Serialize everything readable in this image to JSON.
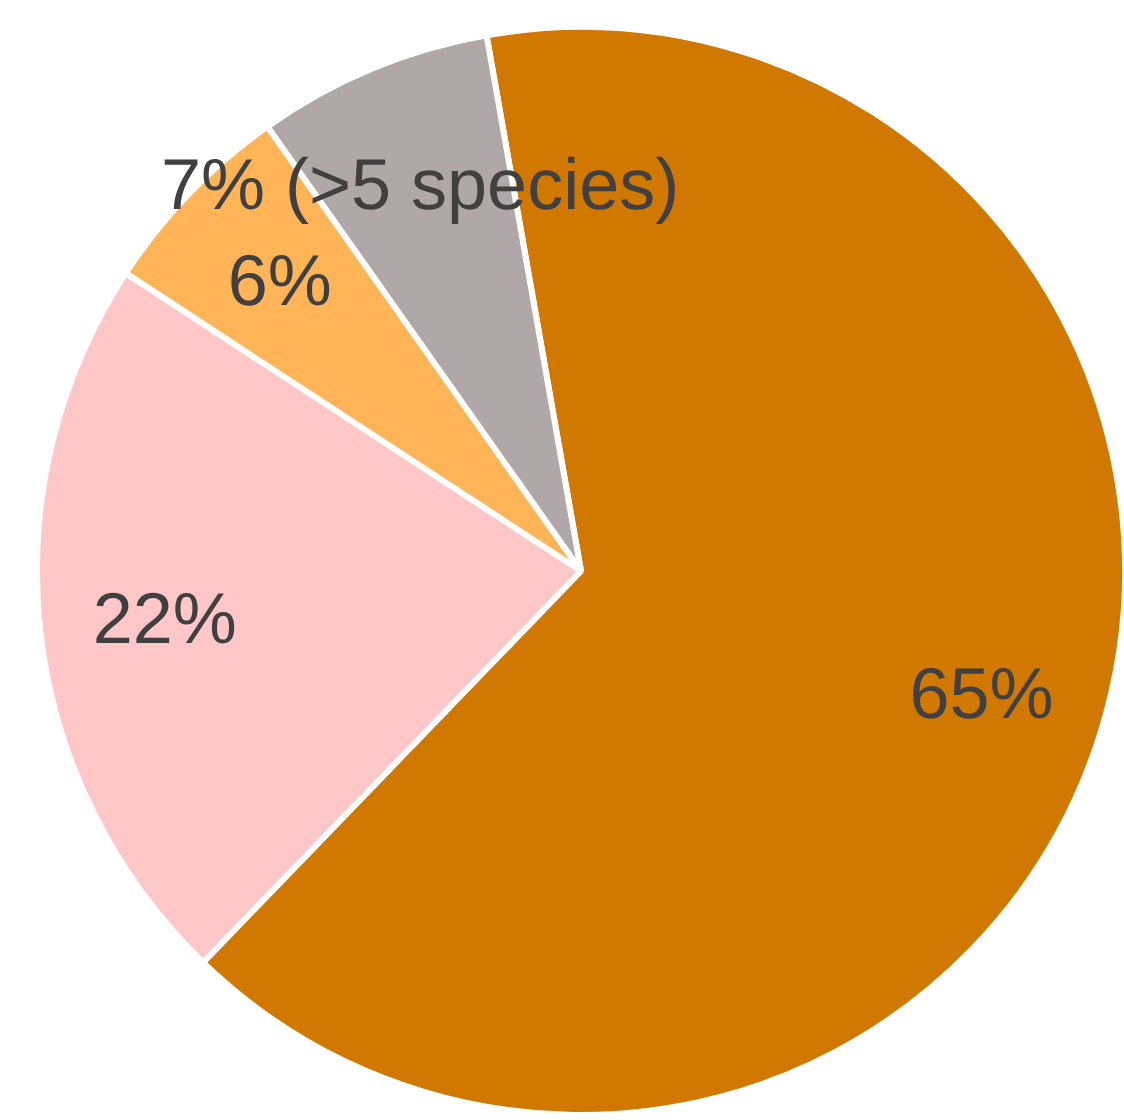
{
  "chart_data": {
    "type": "pie",
    "categories": [
      null,
      null,
      null,
      null
    ],
    "values": [
      65,
      22,
      6,
      7
    ],
    "colors": [
      "#d07800",
      "#ffc7c7",
      "#ffb557",
      "#b0a8a8"
    ],
    "value_labels": [
      "65%",
      "22%",
      "6%",
      "7% (>5 species)"
    ]
  }
}
